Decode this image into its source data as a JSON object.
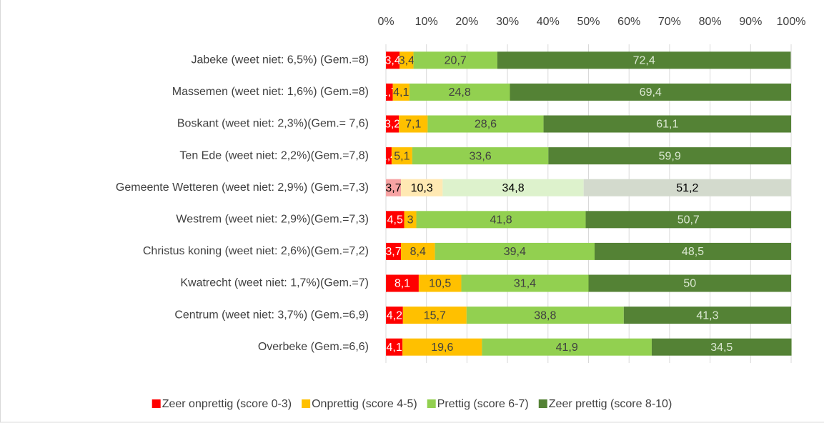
{
  "chart_data": {
    "type": "stacked-bar-horizontal",
    "categories": [
      "Jabeke (weet niet: 6,5%) (Gem.=8)",
      "Massemen (weet niet: 1,6%) (Gem.=8)",
      "Boskant (weet niet: 2,3%)(Gem.= 7,6)",
      "Ten Ede (weet niet: 2,2%)(Gem.=7,8)",
      "Gemeente Wetteren (weet niet: 2,9%) (Gem.=7,3)",
      "Westrem (weet niet: 2,9%)(Gem.=7,3)",
      "Christus koning (weet niet: 2,6%)(Gem.=7,2)",
      "Kwatrecht (weet niet: 1,7%)(Gem.=7)",
      "Centrum (weet niet: 3,7%) (Gem.=6,9)",
      "Overbeke (Gem.=6,6)"
    ],
    "series": [
      {
        "name": "Zeer onprettig (score 0-3)",
        "color": "#ff0000",
        "faded_color": "#f7a3a3",
        "label_color": "#ffffff",
        "values": [
          3.4,
          1.7,
          3.2,
          1.4,
          3.7,
          4.5,
          3.7,
          8.1,
          4.2,
          4.1
        ],
        "value_labels": [
          "3,4",
          "1,7",
          "3,2",
          "1,4",
          "3,7",
          "4,5",
          "3,7",
          "8,1",
          "4,2",
          "4,1"
        ]
      },
      {
        "name": "Onprettig (score 4-5)",
        "color": "#ffc000",
        "faded_color": "#ffe9b3",
        "label_color": "#404040",
        "values": [
          3.4,
          4.1,
          7.1,
          5.1,
          10.3,
          3,
          8.4,
          10.5,
          15.7,
          19.6
        ],
        "value_labels": [
          "3,4",
          "4,1",
          "7,1",
          "5,1",
          "10,3",
          "3",
          "8,4",
          "10,5",
          "15,7",
          "19,6"
        ]
      },
      {
        "name": "Prettig (score 6-7)",
        "color": "#92d050",
        "faded_color": "#ddf2cc",
        "label_color": "#404040",
        "values": [
          20.7,
          24.8,
          28.6,
          33.6,
          34.8,
          41.8,
          39.4,
          31.4,
          38.8,
          41.9
        ],
        "value_labels": [
          "20,7",
          "24,8",
          "28,6",
          "33,6",
          "34,8",
          "41,8",
          "39,4",
          "31,4",
          "38,8",
          "41,9"
        ]
      },
      {
        "name": "Zeer prettig (score 8-10)",
        "color": "#548235",
        "faded_color": "#d3dacd",
        "label_color": "#dbe8d2",
        "values": [
          72.4,
          69.4,
          61.1,
          59.9,
          51.2,
          50.7,
          48.5,
          50,
          41.3,
          34.5
        ],
        "value_labels": [
          "72,4",
          "69,4",
          "61,1",
          "59,9",
          "51,2",
          "50,7",
          "48,5",
          "50",
          "41,3",
          "34,5"
        ]
      }
    ],
    "faded_index": 4,
    "xlim": [
      0,
      100
    ],
    "xticks": [
      {
        "value": 0,
        "label": "0%"
      },
      {
        "value": 10,
        "label": "10%"
      },
      {
        "value": 20,
        "label": "20%"
      },
      {
        "value": 30,
        "label": "30%"
      },
      {
        "value": 40,
        "label": "40%"
      },
      {
        "value": 50,
        "label": "50%"
      },
      {
        "value": 60,
        "label": "60%"
      },
      {
        "value": 70,
        "label": "70%"
      },
      {
        "value": 80,
        "label": "80%"
      },
      {
        "value": 90,
        "label": "90%"
      },
      {
        "value": 100,
        "label": "100%"
      }
    ],
    "grid": true,
    "legend": "bottom"
  }
}
